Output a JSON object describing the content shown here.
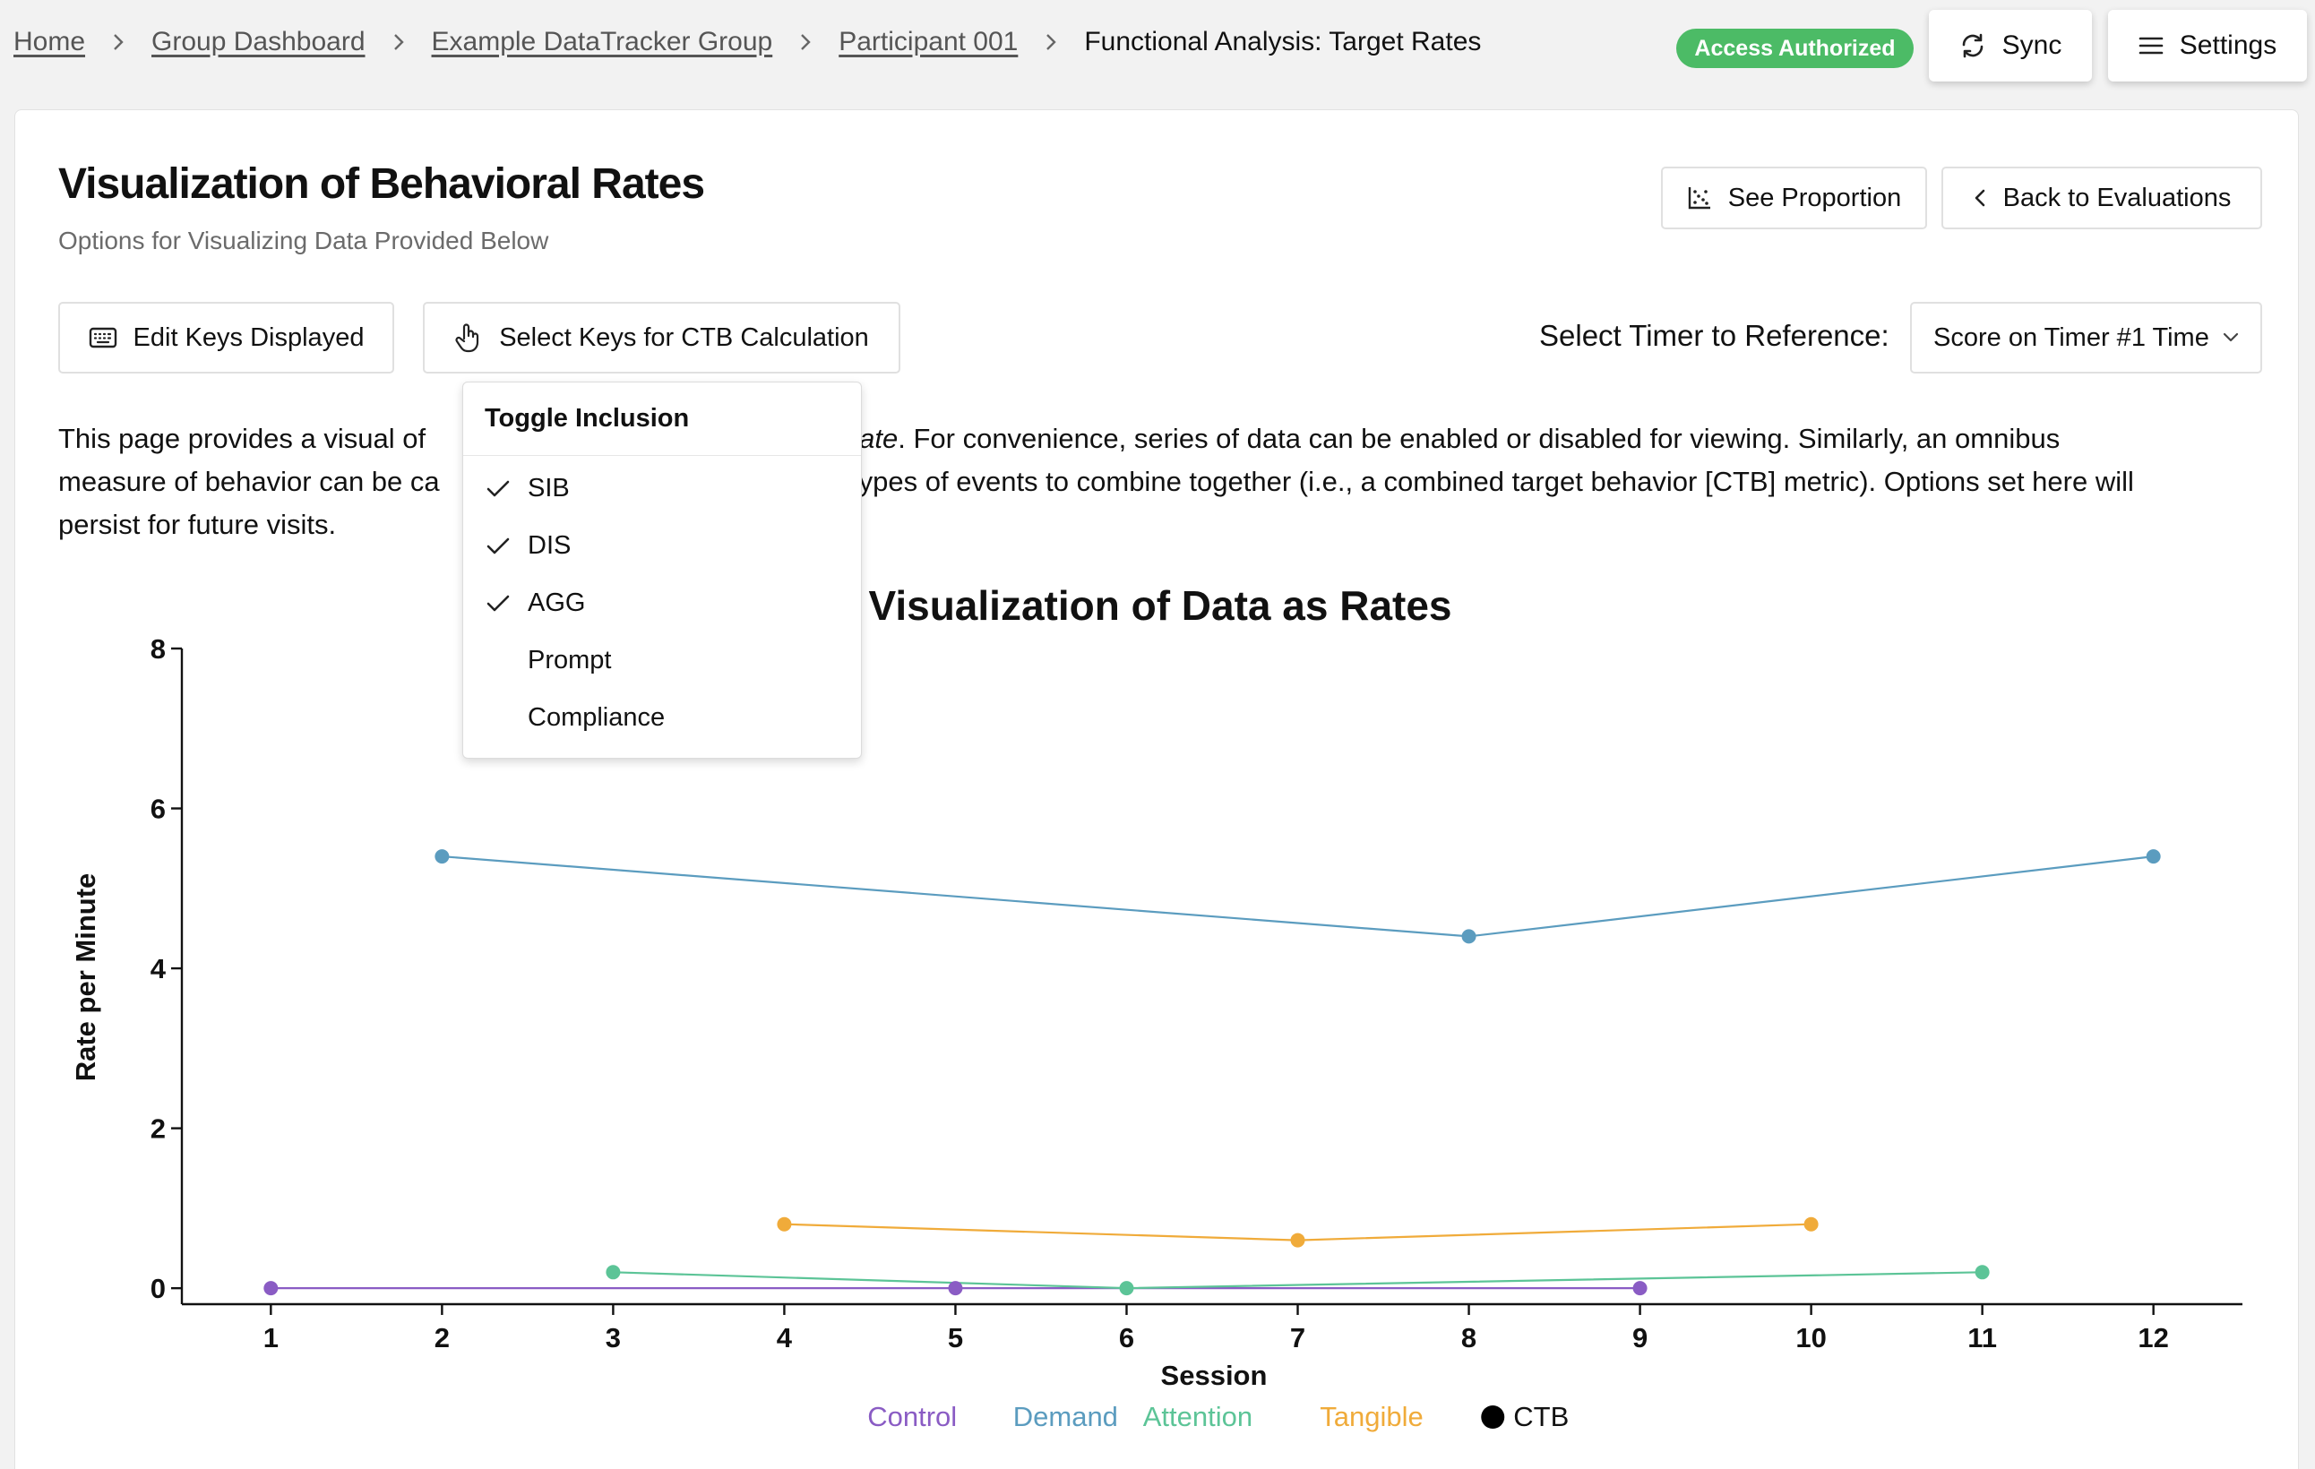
{
  "breadcrumb": {
    "items": [
      "Home",
      "Group Dashboard",
      "Example DataTracker Group",
      "Participant 001"
    ],
    "current": "Functional Analysis: Target Rates"
  },
  "header": {
    "badge": "Access Authorized",
    "sync_label": "Sync",
    "settings_label": "Settings"
  },
  "page": {
    "title": "Visualization of Behavioral Rates",
    "subtitle": "Options for Visualizing Data Provided Below",
    "see_proportion_label": "See Proportion",
    "back_label": "Back to Evaluations",
    "edit_keys_label": "Edit Keys Displayed",
    "select_keys_label": "Select Keys for CTB Calculation",
    "timer_label": "Select Timer to Reference:",
    "timer_value": "Score on Timer #1 Time",
    "description_part1": "This page provides a visual of",
    "description_em": "ate",
    "description_part2": ". For convenience, series of data can be enabled or disabled for viewing. Similarly, an omnibus",
    "description_line2a": "measure of behavior can be ca",
    "description_line2b": "ypes of events to combine together (i.e., a combined target behavior [CTB] metric). Options set here will",
    "description_line3": "persist for future visits."
  },
  "dropdown": {
    "header": "Toggle Inclusion",
    "items": [
      {
        "label": "SIB",
        "checked": true
      },
      {
        "label": "DIS",
        "checked": true
      },
      {
        "label": "AGG",
        "checked": true
      },
      {
        "label": "Prompt",
        "checked": false
      },
      {
        "label": "Compliance",
        "checked": false
      }
    ]
  },
  "colors": {
    "accent_green": "#4cbb66",
    "control": "#8a5cc4",
    "demand": "#5b9cbf",
    "attention": "#5cc497",
    "tangible": "#f0ab3a",
    "ctb": "#000000"
  },
  "chart_data": {
    "type": "line",
    "title": "Visualization of Data as Rates",
    "xlabel": "Session",
    "ylabel": "Rate per Minute",
    "x_ticks": [
      1,
      2,
      3,
      4,
      5,
      6,
      7,
      8,
      9,
      10,
      11,
      12
    ],
    "y_ticks": [
      0,
      2,
      4,
      6,
      8
    ],
    "xlim": [
      0.48,
      12.52
    ],
    "ylim": [
      -0.2,
      8
    ],
    "legend_position": "bottom",
    "series": [
      {
        "name": "Control",
        "color": "#8a5cc4",
        "points": [
          [
            1,
            0
          ],
          [
            5,
            0
          ],
          [
            9,
            0
          ]
        ]
      },
      {
        "name": "Demand",
        "color": "#5b9cbf",
        "points": [
          [
            2,
            5.4
          ],
          [
            8,
            4.4
          ],
          [
            12,
            5.4
          ]
        ]
      },
      {
        "name": "Attention",
        "color": "#5cc497",
        "points": [
          [
            3,
            0.2
          ],
          [
            6,
            0
          ],
          [
            11,
            0.2
          ]
        ]
      },
      {
        "name": "Tangible",
        "color": "#f0ab3a",
        "points": [
          [
            4,
            0.8
          ],
          [
            7,
            0.6
          ],
          [
            10,
            0.8
          ]
        ]
      },
      {
        "name": "CTB",
        "color": "#000000",
        "points": []
      }
    ]
  }
}
